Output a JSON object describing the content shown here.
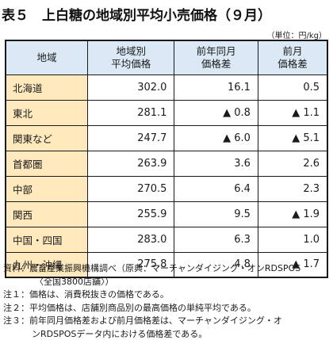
{
  "title": "表５　上白糖の地域別平均小売価格（９月）",
  "unit": "（単位：円/kg）",
  "table": {
    "headers": [
      "地域",
      "地域別\n平均価格",
      "前年同月\n価格差",
      "前月\n価格差"
    ],
    "rows": [
      {
        "region": "北海道",
        "avg": "302.0",
        "yoy": "16.1",
        "mom": "0.5"
      },
      {
        "region": "東北",
        "avg": "281.1",
        "yoy": "▲ 0.8",
        "mom": "▲ 1.1"
      },
      {
        "region": "関東など",
        "avg": "247.7",
        "yoy": "▲ 6.0",
        "mom": "▲ 5.1"
      },
      {
        "region": "首都圏",
        "avg": "263.9",
        "yoy": "3.6",
        "mom": "2.6"
      },
      {
        "region": "中部",
        "avg": "270.5",
        "yoy": "6.4",
        "mom": "2.3"
      },
      {
        "region": "関西",
        "avg": "255.9",
        "yoy": "9.5",
        "mom": "▲ 1.9"
      },
      {
        "region": "中国・四国",
        "avg": "283.0",
        "yoy": "6.3",
        "mom": "1.0"
      },
      {
        "region": "九州・沖縄",
        "avg": "275.8",
        "yoy": "4.8",
        "mom": "▲ 1.7"
      }
    ]
  },
  "notes": {
    "source_label": "資料：",
    "source_line1": "農畜産業振興機構調べ（原典：マーチャンダイジング・オンRDSPOS",
    "source_line2": "〈全国3800店舗〉）",
    "note1_label": "注１：",
    "note1": "価格は、消費税抜きの価格である。",
    "note2_label": "注２：",
    "note2": "平均価格は、店舗別商品別の最高価格の単純平均である。",
    "note3_label": "注３：",
    "note3_line1": "前年同月価格差および前月価格差は、マーチャンダイジング・オ",
    "note3_line2": "ンRDSPOSデータ内における価格差である。"
  }
}
